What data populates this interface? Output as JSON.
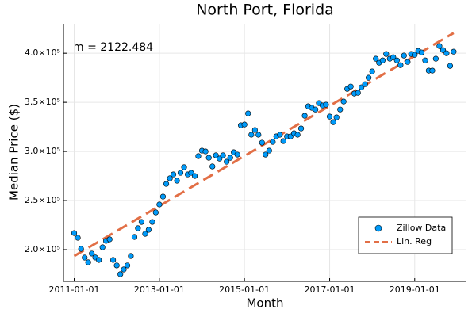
{
  "chart_data": {
    "type": "scatter",
    "title": "North Port, Florida",
    "xlabel": "Month",
    "ylabel": "Median Price ($)",
    "annotation": "m = 2122.484",
    "xlim": [
      "2010-10-01",
      "2020-03-20"
    ],
    "xticks": [
      "2011-01-01",
      "2013-01-01",
      "2015-01-01",
      "2017-01-01",
      "2019-01-01"
    ],
    "ylim": [
      167700,
      430000
    ],
    "yticks": [
      {
        "value": 200000,
        "label": "2.0×10⁵"
      },
      {
        "value": 250000,
        "label": "2.5×10⁵"
      },
      {
        "value": 300000,
        "label": "3.0×10⁵"
      },
      {
        "value": 350000,
        "label": "3.5×10⁵"
      },
      {
        "value": 400000,
        "label": "4.0×10⁵"
      }
    ],
    "grid": true,
    "legend": "bottomright",
    "series": [
      {
        "name": "Zillow Data",
        "type": "scatter",
        "color": "#009af9",
        "x": [
          "2011-01-01",
          "2011-02-01",
          "2011-03-01",
          "2011-04-01",
          "2011-05-01",
          "2011-06-01",
          "2011-07-01",
          "2011-08-01",
          "2011-09-01",
          "2011-10-01",
          "2011-11-01",
          "2011-12-01",
          "2012-01-01",
          "2012-02-01",
          "2012-03-01",
          "2012-04-01",
          "2012-05-01",
          "2012-06-01",
          "2012-07-01",
          "2012-08-01",
          "2012-09-01",
          "2012-10-01",
          "2012-11-01",
          "2012-12-01",
          "2013-01-01",
          "2013-02-01",
          "2013-03-01",
          "2013-04-01",
          "2013-05-01",
          "2013-06-01",
          "2013-07-01",
          "2013-08-01",
          "2013-09-01",
          "2013-10-01",
          "2013-11-01",
          "2013-12-01",
          "2014-01-01",
          "2014-02-01",
          "2014-03-01",
          "2014-04-01",
          "2014-05-01",
          "2014-06-01",
          "2014-07-01",
          "2014-08-01",
          "2014-09-01",
          "2014-10-01",
          "2014-11-01",
          "2014-12-01",
          "2015-01-01",
          "2015-02-01",
          "2015-03-01",
          "2015-04-01",
          "2015-05-01",
          "2015-06-01",
          "2015-07-01",
          "2015-08-01",
          "2015-09-01",
          "2015-10-01",
          "2015-11-01",
          "2015-12-01",
          "2016-01-01",
          "2016-02-01",
          "2016-03-01",
          "2016-04-01",
          "2016-05-01",
          "2016-06-01",
          "2016-07-01",
          "2016-08-01",
          "2016-09-01",
          "2016-10-01",
          "2016-11-01",
          "2016-12-01",
          "2017-01-01",
          "2017-02-01",
          "2017-03-01",
          "2017-04-01",
          "2017-05-01",
          "2017-06-01",
          "2017-07-01",
          "2017-08-01",
          "2017-09-01",
          "2017-10-01",
          "2017-11-01",
          "2017-12-01",
          "2018-01-01",
          "2018-02-01",
          "2018-03-01",
          "2018-04-01",
          "2018-05-01",
          "2018-06-01",
          "2018-07-01",
          "2018-08-01",
          "2018-09-01",
          "2018-10-01",
          "2018-11-01",
          "2018-12-01",
          "2019-01-01",
          "2019-02-01",
          "2019-03-01",
          "2019-04-01",
          "2019-05-01",
          "2019-06-01",
          "2019-07-01",
          "2019-08-01",
          "2019-09-01",
          "2019-10-01",
          "2019-11-01",
          "2019-12-01"
        ],
        "values": [
          216900,
          212100,
          200800,
          191900,
          187100,
          196000,
          192000,
          189500,
          202400,
          208900,
          210500,
          189500,
          183900,
          175000,
          179800,
          183900,
          193500,
          212900,
          221800,
          228200,
          216100,
          220200,
          228200,
          237900,
          246000,
          254000,
          266900,
          272600,
          276600,
          270200,
          278200,
          283900,
          276600,
          278200,
          275000,
          295200,
          300800,
          300000,
          293500,
          284700,
          296000,
          292700,
          296000,
          289500,
          293500,
          299200,
          296800,
          326600,
          327400,
          338700,
          317000,
          321800,
          317000,
          308900,
          296800,
          300800,
          309700,
          315300,
          317000,
          310500,
          315300,
          315300,
          318500,
          317000,
          323400,
          336300,
          346000,
          344400,
          342700,
          349200,
          346800,
          347600,
          335500,
          329800,
          334700,
          342700,
          350800,
          363700,
          366100,
          358900,
          359700,
          365300,
          368500,
          375000,
          381500,
          394400,
          390300,
          392700,
          399200,
          394400,
          395900,
          392700,
          387900,
          397600,
          391100,
          399200,
          398400,
          402400,
          400800,
          392700,
          382300,
          382300,
          394400,
          407300,
          403200,
          400000,
          387100,
          401600
        ]
      },
      {
        "name": "Lin. Reg",
        "type": "line",
        "color": "#e26f46",
        "x": [
          "2011-01-01",
          "2019-12-01"
        ],
        "values": [
          193500,
          420600
        ]
      }
    ]
  }
}
